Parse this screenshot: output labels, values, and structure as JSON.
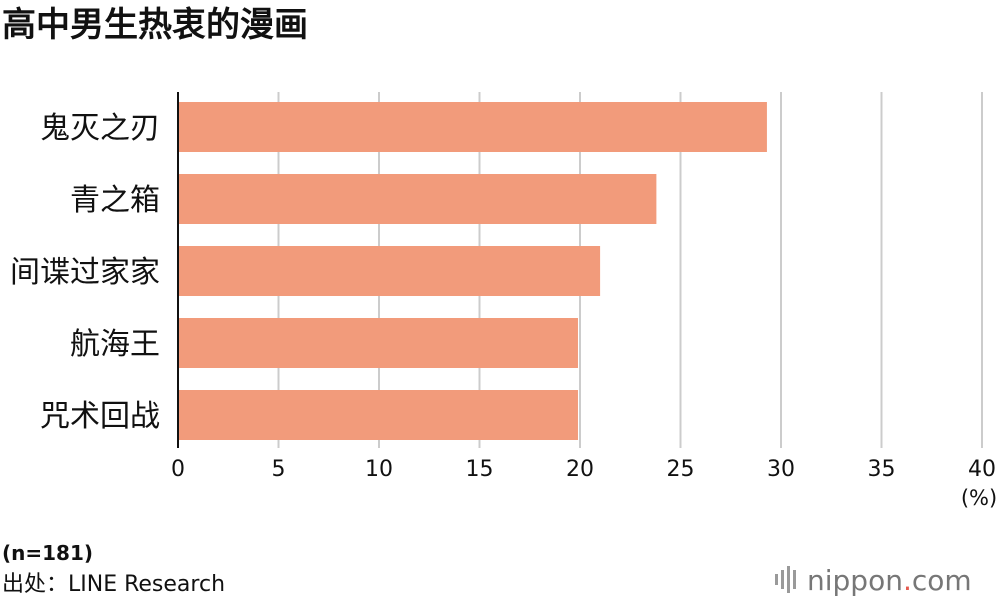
{
  "chart_data": {
    "type": "bar",
    "orientation": "horizontal",
    "title": "高中男生热衷的漫画",
    "categories": [
      "鬼灭之刃",
      "青之箱",
      "间谍过家家",
      "航海王",
      "咒术回战"
    ],
    "values": [
      29.3,
      23.8,
      21.0,
      19.9,
      19.9
    ],
    "xlabel": "",
    "ylabel": "",
    "unit_label": "(%)",
    "xlim": [
      0,
      40
    ],
    "ticks": [
      0,
      5,
      10,
      15,
      20,
      25,
      30,
      35,
      40
    ],
    "grid": true,
    "legend": "none",
    "colors": {
      "bar": "#f29b7b",
      "grid": "#cccccc",
      "axis": "#111111",
      "text": "#111111",
      "logo_text": "#777777"
    }
  },
  "footnote": {
    "sample": "(n=181)",
    "source": "出处：LINE Research"
  },
  "brand": {
    "name": "nippon",
    "dot": ".",
    "suffix": "com",
    "icon": "nippon-bars-icon"
  }
}
